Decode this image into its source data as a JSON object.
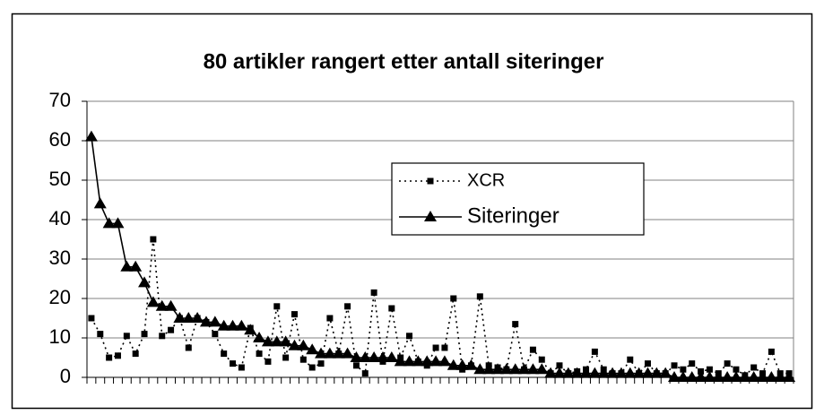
{
  "chart_data": {
    "type": "line",
    "title": "80 artikler rangert etter antall siteringer",
    "categories": [
      null,
      null,
      null,
      null,
      null,
      null,
      null,
      null,
      null,
      null,
      null,
      null,
      null,
      null,
      null,
      null,
      null,
      null,
      null,
      null,
      null,
      null,
      null,
      null,
      null,
      null,
      null,
      null,
      null,
      null,
      null,
      null,
      null,
      null,
      null,
      null,
      null,
      null,
      null,
      null,
      null,
      null,
      null,
      null,
      null,
      null,
      null,
      null,
      null,
      null,
      null,
      null,
      null,
      null,
      null,
      null,
      null,
      null,
      null,
      null,
      null,
      null,
      null,
      null,
      null,
      null,
      null,
      null,
      null,
      null,
      null,
      null,
      null,
      null,
      null,
      null,
      null,
      null,
      null,
      null
    ],
    "series": [
      {
        "name": "XCR",
        "color": "#000000",
        "values": [
          15,
          11,
          5,
          5.5,
          10.5,
          6,
          11,
          35,
          10.5,
          12,
          15,
          7.5,
          15,
          14,
          11,
          6,
          3.5,
          2.5,
          12.5,
          6,
          4,
          18,
          5,
          16,
          4.5,
          2.5,
          3.5,
          15,
          6,
          18,
          3,
          1,
          21.5,
          4,
          17.5,
          5,
          10.5,
          4,
          3,
          7.5,
          7.5,
          20,
          2,
          3,
          20.5,
          3,
          2.5,
          2,
          13.5,
          2,
          7,
          4.5,
          1,
          3,
          1,
          1.5,
          2,
          6.5,
          2,
          1,
          1,
          4.5,
          1,
          3.5,
          1,
          1,
          3,
          2,
          3.5,
          1.5,
          2,
          1,
          3.5,
          2,
          0.5,
          2.5,
          1,
          6.5,
          1,
          1
        ]
      },
      {
        "name": "Siteringer",
        "color": "#000000",
        "values": [
          61,
          44,
          39,
          39,
          28,
          28,
          24,
          19,
          18,
          18,
          15,
          15,
          15,
          14,
          14,
          13,
          13,
          13,
          12,
          10,
          9,
          9,
          9,
          8,
          8,
          7,
          6,
          6,
          6,
          6,
          5,
          5,
          5,
          5,
          5,
          4,
          4,
          4,
          4,
          4,
          4,
          3,
          3,
          3,
          2,
          2,
          2,
          2,
          2,
          2,
          2,
          2,
          1,
          1,
          1,
          1,
          1,
          1,
          1,
          1,
          1,
          1,
          1,
          1,
          1,
          1,
          0,
          0,
          0,
          0,
          0,
          0,
          0,
          0,
          0,
          0,
          0,
          0,
          0,
          0
        ]
      }
    ],
    "ylim": [
      0,
      70
    ],
    "yticks": [
      0,
      10,
      20,
      30,
      40,
      50,
      60,
      70
    ],
    "grid": true,
    "legend": "center"
  }
}
